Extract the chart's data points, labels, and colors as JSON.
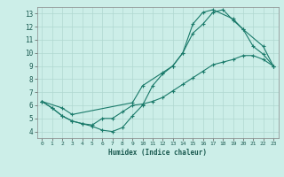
{
  "xlabel": "Humidex (Indice chaleur)",
  "ylabel": "",
  "background_color": "#cceee8",
  "grid_color": "#b0d8d0",
  "line_color": "#1a7a6a",
  "xlim": [
    -0.5,
    23.5
  ],
  "ylim": [
    3.5,
    13.5
  ],
  "xticks": [
    0,
    1,
    2,
    3,
    4,
    5,
    6,
    7,
    8,
    9,
    10,
    11,
    12,
    13,
    14,
    15,
    16,
    17,
    18,
    19,
    20,
    21,
    22,
    23
  ],
  "yticks": [
    4,
    5,
    6,
    7,
    8,
    9,
    10,
    11,
    12,
    13
  ],
  "line1_x": [
    0,
    1,
    2,
    3,
    4,
    5,
    6,
    7,
    8,
    9,
    10,
    11,
    12,
    13,
    14,
    15,
    16,
    17,
    18,
    19,
    20,
    21,
    22,
    23
  ],
  "line1_y": [
    6.3,
    5.8,
    5.2,
    4.8,
    4.6,
    4.4,
    4.1,
    4.0,
    4.3,
    5.2,
    6.0,
    7.5,
    8.4,
    9.0,
    10.0,
    11.5,
    12.2,
    13.1,
    13.3,
    12.5,
    11.8,
    10.5,
    9.9,
    9.0
  ],
  "line2_x": [
    0,
    1,
    2,
    3,
    4,
    5,
    6,
    7,
    8,
    9,
    10,
    11,
    12,
    13,
    14,
    15,
    16,
    17,
    18,
    19,
    20,
    21,
    22,
    23
  ],
  "line2_y": [
    6.3,
    5.8,
    5.2,
    4.8,
    4.6,
    4.5,
    5.0,
    5.0,
    5.5,
    6.0,
    6.1,
    6.3,
    6.6,
    7.1,
    7.6,
    8.1,
    8.6,
    9.1,
    9.3,
    9.5,
    9.8,
    9.8,
    9.5,
    9.0
  ],
  "line3_x": [
    0,
    2,
    3,
    9,
    10,
    12,
    13,
    14,
    15,
    16,
    17,
    19,
    20,
    22,
    23
  ],
  "line3_y": [
    6.3,
    5.8,
    5.3,
    6.2,
    7.5,
    8.5,
    9.0,
    10.0,
    12.2,
    13.1,
    13.3,
    12.6,
    11.8,
    10.5,
    9.0
  ]
}
